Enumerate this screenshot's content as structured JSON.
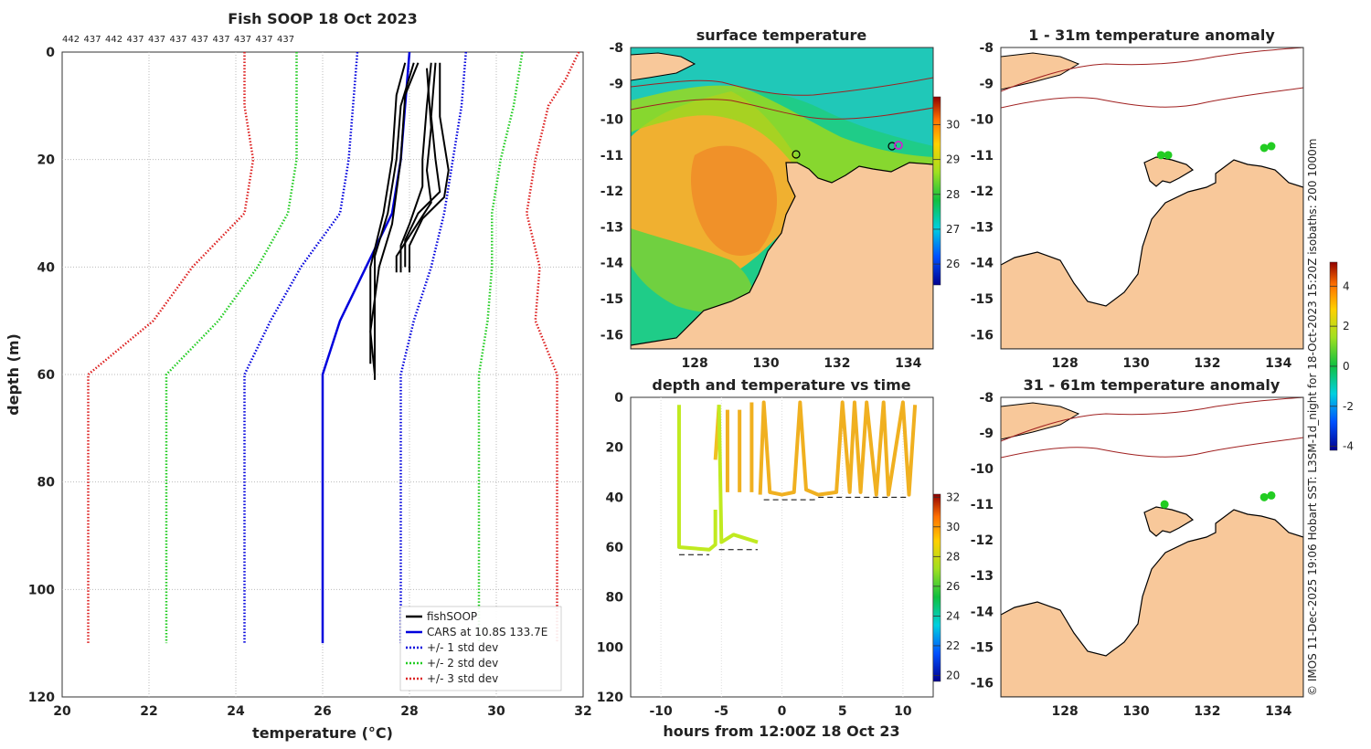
{
  "figure_title": "Fish SOOP 18 Oct 2023",
  "side_note": "© IMOS 11-Dec-2025 19:06 Hobart SST: L3SM-1d_night for 18-Oct-2023 15:20Z isobaths: 200  1000m",
  "chart_data": [
    {
      "id": "profile",
      "type": "line",
      "title": "Fish SOOP 18 Oct 2023",
      "xlabel": "temperature (°C)",
      "ylabel": "depth (m)",
      "xlim": [
        20,
        32
      ],
      "ylim": [
        0,
        120
      ],
      "xticks": [
        "20",
        "22",
        "24",
        "26",
        "28",
        "30",
        "32"
      ],
      "yticks": [
        "0",
        "20",
        "40",
        "60",
        "80",
        "100",
        "120"
      ],
      "top_labels": [
        "442",
        "437",
        "442",
        "437",
        "437",
        "437",
        "437",
        "437",
        "437",
        "437",
        "437"
      ],
      "legend": [
        "fishSOOP",
        "CARS at 10.8S 133.7E",
        "+/- 1 std dev",
        "+/- 2 std dev",
        "+/- 3 std dev"
      ],
      "series": [
        {
          "name": "CARS at 10.8S 133.7E",
          "color": "#0000dd",
          "style": "solid",
          "points": [
            [
              28.0,
              0
            ],
            [
              27.9,
              10
            ],
            [
              27.8,
              20
            ],
            [
              27.6,
              30
            ],
            [
              27.0,
              40
            ],
            [
              26.4,
              50
            ],
            [
              26.0,
              60
            ],
            [
              26.0,
              110
            ]
          ]
        },
        {
          "name": "+1 std",
          "color": "#0000dd",
          "style": "dotted",
          "points": [
            [
              29.3,
              0
            ],
            [
              29.2,
              10
            ],
            [
              29.0,
              20
            ],
            [
              28.8,
              30
            ],
            [
              28.5,
              40
            ],
            [
              28.1,
              50
            ],
            [
              27.8,
              60
            ],
            [
              27.8,
              110
            ]
          ]
        },
        {
          "name": "-1 std",
          "color": "#0000dd",
          "style": "dotted",
          "points": [
            [
              26.8,
              0
            ],
            [
              26.7,
              10
            ],
            [
              26.6,
              20
            ],
            [
              26.4,
              30
            ],
            [
              25.5,
              40
            ],
            [
              24.8,
              50
            ],
            [
              24.2,
              60
            ],
            [
              24.2,
              110
            ]
          ]
        },
        {
          "name": "+2 std",
          "color": "#22cc22",
          "style": "dotted",
          "points": [
            [
              30.6,
              0
            ],
            [
              30.4,
              10
            ],
            [
              30.1,
              20
            ],
            [
              29.9,
              30
            ],
            [
              29.9,
              40
            ],
            [
              29.8,
              50
            ],
            [
              29.6,
              60
            ],
            [
              29.6,
              110
            ]
          ]
        },
        {
          "name": "-2 std",
          "color": "#22cc22",
          "style": "dotted",
          "points": [
            [
              25.4,
              0
            ],
            [
              25.4,
              10
            ],
            [
              25.4,
              20
            ],
            [
              25.2,
              30
            ],
            [
              24.5,
              40
            ],
            [
              23.6,
              50
            ],
            [
              22.4,
              60
            ],
            [
              22.4,
              110
            ]
          ]
        },
        {
          "name": "+3 std",
          "color": "#dd2222",
          "style": "dotted",
          "points": [
            [
              31.9,
              0
            ],
            [
              31.6,
              5
            ],
            [
              31.2,
              10
            ],
            [
              30.9,
              20
            ],
            [
              30.7,
              30
            ],
            [
              31.0,
              40
            ],
            [
              30.9,
              50
            ],
            [
              31.4,
              60
            ],
            [
              31.4,
              110
            ]
          ]
        },
        {
          "name": "-3 std",
          "color": "#dd2222",
          "style": "dotted",
          "points": [
            [
              24.2,
              0
            ],
            [
              24.2,
              10
            ],
            [
              24.4,
              20
            ],
            [
              24.2,
              30
            ],
            [
              23.0,
              40
            ],
            [
              22.1,
              50
            ],
            [
              20.6,
              60
            ],
            [
              20.6,
              110
            ]
          ]
        }
      ],
      "fish_profiles": [
        [
          [
            27.9,
            2
          ],
          [
            27.7,
            8
          ],
          [
            27.6,
            20
          ],
          [
            27.4,
            30
          ],
          [
            27.1,
            40
          ],
          [
            27.1,
            50
          ],
          [
            27.1,
            58
          ]
        ],
        [
          [
            28.1,
            2
          ],
          [
            27.8,
            10
          ],
          [
            27.7,
            20
          ],
          [
            27.5,
            30
          ],
          [
            27.2,
            38
          ],
          [
            27.2,
            50
          ],
          [
            27.2,
            61
          ]
        ],
        [
          [
            28.2,
            2
          ],
          [
            27.9,
            8
          ],
          [
            27.8,
            20
          ],
          [
            27.6,
            32
          ],
          [
            27.3,
            40
          ],
          [
            27.1,
            52
          ],
          [
            27.2,
            60
          ]
        ],
        [
          [
            28.5,
            2
          ],
          [
            28.4,
            10
          ],
          [
            28.3,
            20
          ],
          [
            28.3,
            25
          ],
          [
            28.0,
            32
          ],
          [
            27.8,
            36
          ],
          [
            27.8,
            41
          ]
        ],
        [
          [
            28.6,
            2
          ],
          [
            28.5,
            12
          ],
          [
            28.6,
            20
          ],
          [
            28.7,
            26
          ],
          [
            28.2,
            30
          ],
          [
            27.9,
            35
          ],
          [
            27.9,
            40
          ]
        ],
        [
          [
            28.7,
            2
          ],
          [
            28.7,
            12
          ],
          [
            28.9,
            22
          ],
          [
            28.8,
            27
          ],
          [
            28.3,
            31
          ],
          [
            28.0,
            36
          ],
          [
            28.0,
            41
          ]
        ],
        [
          [
            28.4,
            3
          ],
          [
            28.5,
            14
          ],
          [
            28.4,
            22
          ],
          [
            28.5,
            28
          ],
          [
            28.1,
            33
          ],
          [
            27.7,
            38
          ],
          [
            27.7,
            41
          ]
        ]
      ]
    },
    {
      "id": "sst",
      "type": "heatmap",
      "title": "surface temperature",
      "xlim": [
        126.2,
        134.7
      ],
      "ylim": [
        -16.4,
        -8
      ],
      "xticks": [
        "128",
        "130",
        "132",
        "134"
      ],
      "yticks": [
        "-8",
        "-9",
        "-10",
        "-11",
        "-12",
        "-13",
        "-14",
        "-15",
        "-16"
      ],
      "colorbar": {
        "min": 25.4,
        "max": 30.8,
        "ticks": [
          "26",
          "27",
          "28",
          "29",
          "30"
        ]
      }
    },
    {
      "id": "anom1",
      "type": "heatmap",
      "title": "1 - 31m temperature anomaly",
      "xlim": [
        126.2,
        134.7
      ],
      "ylim": [
        -16.4,
        -8
      ],
      "xticks": [
        "128",
        "130",
        "132",
        "134"
      ],
      "yticks": [
        "-8",
        "-9",
        "-10",
        "-11",
        "-12",
        "-13",
        "-14",
        "-15",
        "-16"
      ],
      "colorbar": {
        "min": -4.2,
        "max": 5.2,
        "ticks": [
          "4",
          "2",
          "0",
          "-2",
          "-4"
        ]
      },
      "points": [
        [
          130.7,
          -11.0
        ],
        [
          130.9,
          -11.0
        ],
        [
          133.6,
          -10.8
        ],
        [
          133.8,
          -10.75
        ]
      ]
    },
    {
      "id": "anom2",
      "type": "heatmap",
      "title": "31 - 61m temperature anomaly",
      "xlim": [
        126.2,
        134.7
      ],
      "ylim": [
        -16.4,
        -8
      ],
      "xticks": [
        "128",
        "130",
        "132",
        "134"
      ],
      "yticks": [
        "-8",
        "-9",
        "-10",
        "-11",
        "-12",
        "-13",
        "-14",
        "-15",
        "-16"
      ],
      "points": [
        [
          130.8,
          -11.0
        ],
        [
          133.6,
          -10.8
        ],
        [
          133.8,
          -10.75
        ]
      ]
    },
    {
      "id": "timeseries",
      "type": "scatter",
      "title": "depth and temperature vs time",
      "xlabel": "hours from 12:00Z 18 Oct 23",
      "xlim": [
        -12.5,
        12.5
      ],
      "ylim": [
        0,
        120
      ],
      "xticks": [
        "-10",
        "-5",
        "0",
        "5",
        "10"
      ],
      "yticks": [
        "0",
        "20",
        "40",
        "60",
        "80",
        "100",
        "120"
      ],
      "colorbar": {
        "min": 19.6,
        "max": 32.2,
        "ticks": [
          "32",
          "30",
          "28",
          "26",
          "24",
          "22",
          "20"
        ]
      },
      "bottom_segments": [
        [
          -8.5,
          -6,
          63
        ],
        [
          -5.2,
          -2,
          61
        ],
        [
          -1.5,
          3,
          41
        ],
        [
          3,
          10.5,
          40
        ]
      ]
    }
  ]
}
